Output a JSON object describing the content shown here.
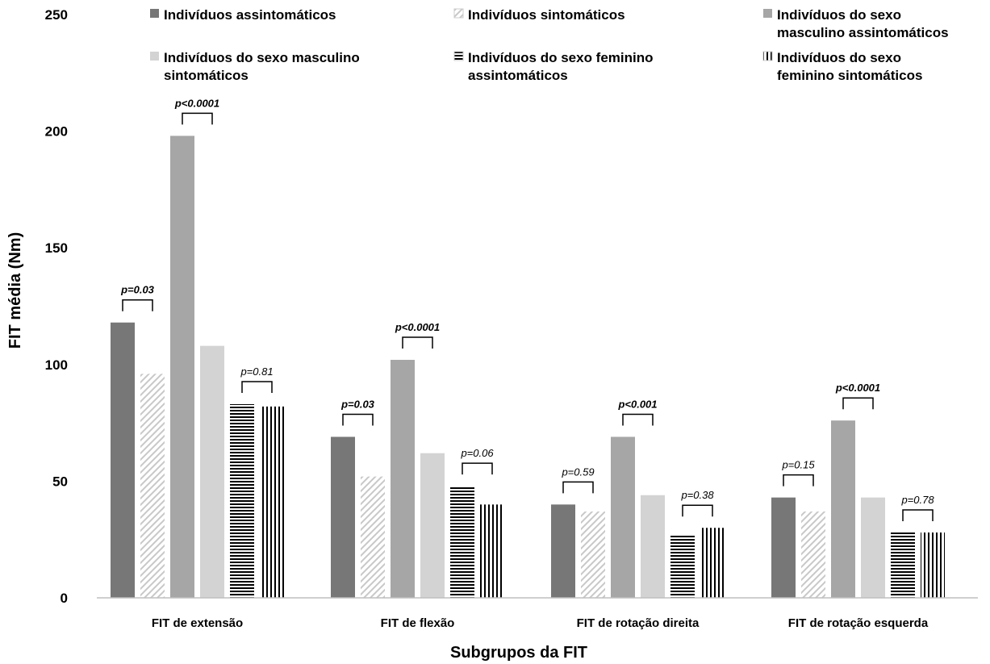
{
  "chart_data": {
    "type": "bar",
    "title": "",
    "xlabel": "Subgrupos da FIT",
    "ylabel": "FIT média (Nm)",
    "ylim": [
      0,
      250
    ],
    "yticks": [
      0,
      50,
      100,
      150,
      200,
      250
    ],
    "grid": false,
    "legend_position": "top",
    "categories": [
      "FIT de extensão",
      "FIT de flexão",
      "FIT de rotação direita",
      "FIT de rotação esquerda"
    ],
    "series": [
      {
        "name": "Indivíduos assintomáticos",
        "values": [
          118,
          69,
          40,
          43
        ],
        "color": "#777777",
        "pattern": "solid"
      },
      {
        "name": "Indivíduos sintomáticos",
        "values": [
          96,
          52,
          37,
          37
        ],
        "color": "#d9d9d9",
        "pattern": "diagonal"
      },
      {
        "name": "Indivíduos do sexo masculino assintomáticos",
        "values": [
          198,
          102,
          69,
          76
        ],
        "color": "#a6a6a6",
        "pattern": "solid"
      },
      {
        "name": "Indivíduos do sexo masculino sintomáticos",
        "values": [
          108,
          62,
          44,
          43
        ],
        "color": "#d3d3d3",
        "pattern": "solid"
      },
      {
        "name": "Indivíduos do sexo feminino assintomáticos",
        "values": [
          83,
          48,
          27,
          28
        ],
        "color": "#000000",
        "pattern": "horizontal"
      },
      {
        "name": "Indivíduos do sexo feminino sintomáticos",
        "values": [
          82,
          40,
          30,
          28
        ],
        "color": "#000000",
        "pattern": "vertical"
      }
    ],
    "annotations": [
      {
        "text": "p=0.03",
        "category": 0,
        "pair": [
          0,
          1
        ],
        "style": "bold"
      },
      {
        "text": "p<0.0001",
        "category": 0,
        "pair": [
          2,
          3
        ],
        "style": "bold"
      },
      {
        "text": "p=0.81",
        "category": 0,
        "pair": [
          4,
          5
        ],
        "style": "light"
      },
      {
        "text": "p=0.03",
        "category": 1,
        "pair": [
          0,
          1
        ],
        "style": "bold"
      },
      {
        "text": "p<0.0001",
        "category": 1,
        "pair": [
          2,
          3
        ],
        "style": "bold"
      },
      {
        "text": "p=0.06",
        "category": 1,
        "pair": [
          4,
          5
        ],
        "style": "light"
      },
      {
        "text": "p=0.59",
        "category": 2,
        "pair": [
          0,
          1
        ],
        "style": "light"
      },
      {
        "text": "p<0.001",
        "category": 2,
        "pair": [
          2,
          3
        ],
        "style": "bold"
      },
      {
        "text": "p=0.38",
        "category": 2,
        "pair": [
          4,
          5
        ],
        "style": "light"
      },
      {
        "text": "p=0.15",
        "category": 3,
        "pair": [
          0,
          1
        ],
        "style": "light"
      },
      {
        "text": "p<0.0001",
        "category": 3,
        "pair": [
          2,
          3
        ],
        "style": "bold"
      },
      {
        "text": "p=0.78",
        "category": 3,
        "pair": [
          4,
          5
        ],
        "style": "light"
      }
    ],
    "legend": [
      {
        "series": 0,
        "lines": [
          "Indivíduos assintomáticos"
        ]
      },
      {
        "series": 1,
        "lines": [
          "Indivíduos sintomáticos"
        ]
      },
      {
        "series": 2,
        "lines": [
          "Indivíduos do sexo",
          "masculino assintomáticos"
        ]
      },
      {
        "series": 3,
        "lines": [
          "Indivíduos do sexo masculino",
          "sintomáticos"
        ]
      },
      {
        "series": 4,
        "lines": [
          "Indivíduos do sexo feminino",
          "assintomáticos"
        ]
      },
      {
        "series": 5,
        "lines": [
          "Indivíduos do sexo",
          "feminino sintomáticos"
        ]
      }
    ]
  }
}
